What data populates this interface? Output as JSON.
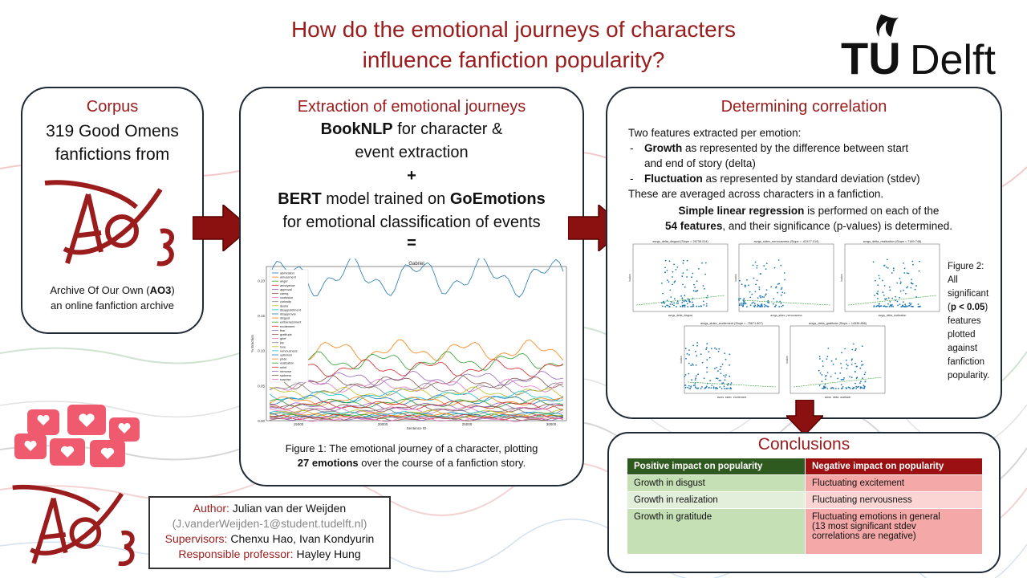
{
  "header": {
    "title_line1": "How do the emotional journeys of characters",
    "title_line2": "influence fanfiction popularity?",
    "logo_text_tu": "TU",
    "logo_text_delft": "Delft"
  },
  "corpus": {
    "title": "Corpus",
    "line1": "319 Good Omens",
    "line2": "fanfictions from",
    "desc_prefix": "Archive Of Our Own (",
    "desc_bold": "AO3",
    "desc_suffix": ")",
    "desc_line2": "an online fanfiction archive",
    "logo_text": "AO3"
  },
  "extraction": {
    "title": "Extraction of emotional journeys",
    "bold1": "BookNLP",
    "text1": " for character &",
    "text2": "event extraction",
    "plus": "+",
    "bold2": "BERT",
    "text3": " model trained on ",
    "bold3": "GoEmotions",
    "text4": "for emotional classification of events",
    "equals": "=",
    "fig_caption_line1": "Figure 1: The emotional journey of a character, plotting",
    "fig_caption_bold": "27 emotions",
    "fig_caption_line2_rest": " over the course of a fanfiction story."
  },
  "correlation": {
    "title": "Determining correlation",
    "intro": "Two features extracted per emotion:",
    "bullet1_bold": "Growth",
    "bullet1_text": " as represented by the difference between start",
    "bullet1_text2": "and end of story (delta)",
    "bullet2_bold": "Fluctuation",
    "bullet2_text": " as represented by standard deviation (stdev)",
    "averaged": "These are averaged across characters in a fanfiction.",
    "reg_bold": "Simple linear regression",
    "reg_text": " is performed on each of the",
    "reg_bold2": "54 features",
    "reg_text2": ", and their significance (p-values) is determined.",
    "fig2_line1": "Figure 2:",
    "fig2_line2": "All",
    "fig2_line3": "significant",
    "fig2_line4_open": "(",
    "fig2_line4_bold": "p < 0.05",
    "fig2_line4_close": ")",
    "fig2_line5": "features",
    "fig2_line6": "plotted",
    "fig2_line7": "against",
    "fig2_line8": "fanfiction",
    "fig2_line9": "popularity."
  },
  "conclusions": {
    "title": "Conclusions",
    "col_pos": "Positive impact on popularity",
    "col_neg": "Negative impact on popularity",
    "rows": [
      {
        "pos": "Growth in disgust",
        "neg": "Fluctuating excitement"
      },
      {
        "pos": "Growth in realization",
        "neg": "Fluctuating nervousness"
      },
      {
        "pos": "Growth in gratitude",
        "neg": "Fluctuating emotions in general",
        "neg2": "(13 most significant stdev",
        "neg3": "correlations are negative)"
      }
    ]
  },
  "author": {
    "author_label": "Author:",
    "author_name": " Julian van der Weijden",
    "email": "(J.vanderWeijden-1@student.tudelft.nl)",
    "supervisors_label": "Supervisors:",
    "supervisors": " Chenxu Hao, Ivan Kondyurin",
    "professor_label": "Responsible professor:",
    "professor": " Hayley Hung"
  },
  "chart_data": [
    {
      "type": "line",
      "title": "Gabriel",
      "xlabel": "Sentence ID",
      "ylabel": "% Emotion",
      "x_ticks": [
        "15000",
        "20000",
        "25000",
        "30000"
      ],
      "y_ticks": [
        "0.00",
        "0.05",
        "0.10",
        "0.15",
        "0.20"
      ],
      "ylim": [
        0,
        0.22
      ],
      "legend": [
        "admiration",
        "amusement",
        "anger",
        "annoyance",
        "approval",
        "caring",
        "confusion",
        "curiosity",
        "desire",
        "disappointment",
        "disapproval",
        "disgust",
        "embarrassment",
        "excitement",
        "fear",
        "gratitude",
        "grief",
        "joy",
        "love",
        "nervousness",
        "optimism",
        "pride",
        "realization",
        "relief",
        "remorse",
        "sadness",
        "surprise"
      ],
      "series_levels": [
        0.205,
        0.1,
        0.085,
        0.075,
        0.06,
        0.055,
        0.05,
        0.045,
        0.04,
        0.035,
        0.03,
        0.028,
        0.025,
        0.022,
        0.02,
        0.018,
        0.015,
        0.013,
        0.011,
        0.009,
        0.008,
        0.007,
        0.006,
        0.005,
        0.004,
        0.003,
        0.002
      ]
    },
    {
      "type": "scatter",
      "panels": [
        {
          "title": "avrgs_delta_disgust (Slope = 26738.014)",
          "xlabel": "avrgs_delta_disgust"
        },
        {
          "title": "avrgs_stdev_nervousness (Slope = -62477.019)",
          "xlabel": "avrgs_stdev_nervousness"
        },
        {
          "title": "avrgs_delta_realization (Slope = 7189.748)",
          "xlabel": "avrgs_delta_realization"
        },
        {
          "title": "avrgs_stdev_excitement (Slope = -75671.807)",
          "xlabel": "avrgs_stdev_excitement"
        },
        {
          "title": "avrgs_delta_gratitude (Slope = 14336.808)",
          "xlabel": "avrgs_delta_gratitude"
        }
      ],
      "ylabel": "kudos"
    }
  ]
}
